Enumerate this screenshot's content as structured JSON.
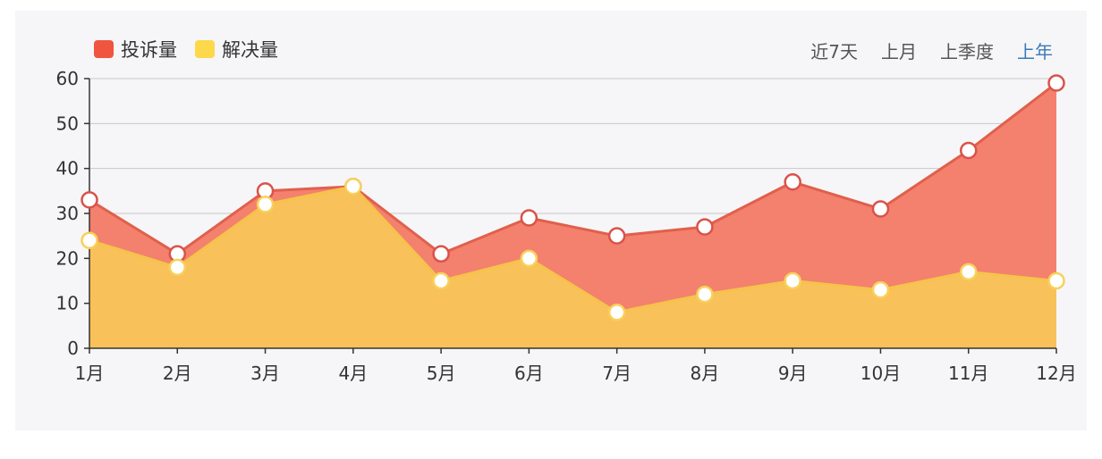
{
  "legend": {
    "complaints_label": "投诉量",
    "resolved_label": "解决量",
    "complaints_color": "#f0553f",
    "resolved_color": "#fcd84a"
  },
  "range_tabs": [
    {
      "label": "近7天",
      "active": false
    },
    {
      "label": "上月",
      "active": false
    },
    {
      "label": "上季度",
      "active": false
    },
    {
      "label": "上年",
      "active": true
    }
  ],
  "chart_data": {
    "type": "area",
    "categories": [
      "1月",
      "2月",
      "3月",
      "4月",
      "5月",
      "6月",
      "7月",
      "8月",
      "9月",
      "10月",
      "11月",
      "12月"
    ],
    "series": [
      {
        "name": "投诉量",
        "values": [
          33,
          21,
          35,
          36,
          21,
          29,
          25,
          27,
          37,
          31,
          44,
          59
        ],
        "color": "#f4806e"
      },
      {
        "name": "解决量",
        "values": [
          24,
          18,
          32,
          36,
          15,
          20,
          8,
          12,
          15,
          13,
          17,
          15
        ],
        "color": "#f9c15a"
      }
    ],
    "ylim": [
      0,
      60
    ],
    "yticks": [
      0,
      10,
      20,
      30,
      40,
      50,
      60
    ],
    "grid": true,
    "legend_position": "top-left"
  }
}
